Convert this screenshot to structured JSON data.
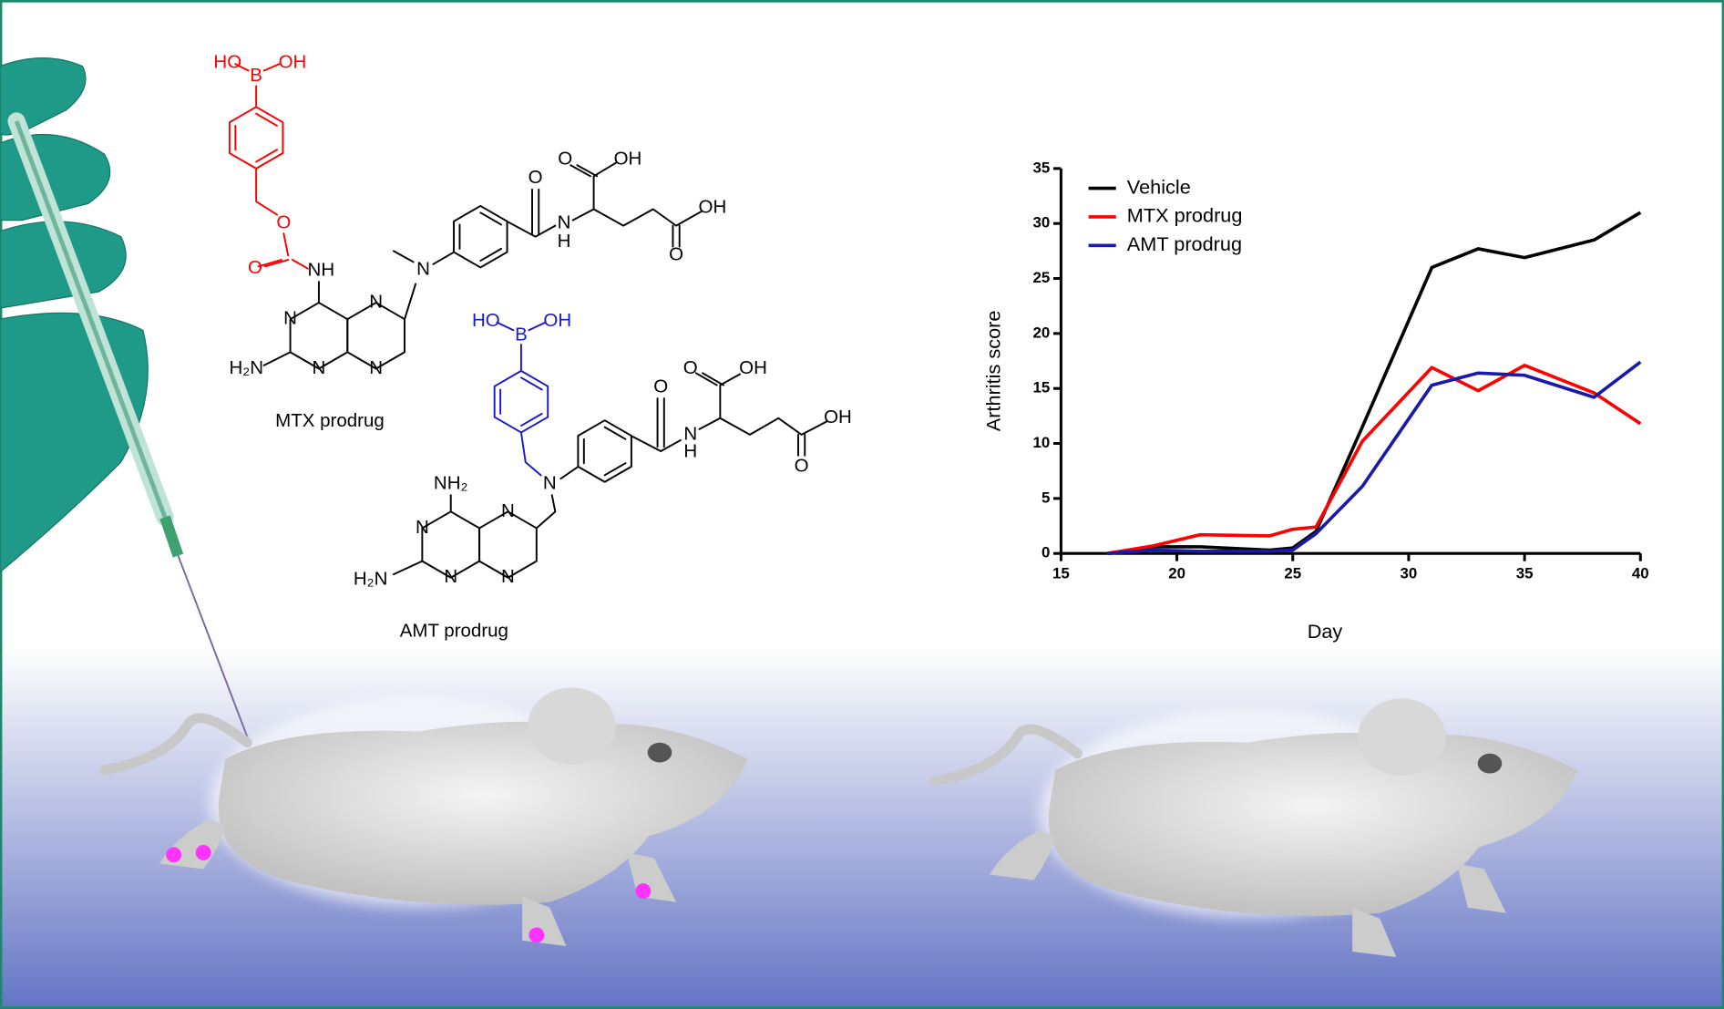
{
  "chart_data": {
    "type": "line",
    "x": [
      17,
      19,
      21,
      24,
      25,
      26,
      28,
      31,
      33,
      35,
      38,
      40
    ],
    "series": [
      {
        "name": "Vehicle",
        "color": "#000000",
        "values": [
          0,
          0.6,
          0.6,
          0.3,
          0.5,
          2,
          11.5,
          26,
          27.7,
          26.9,
          28.5,
          31
        ]
      },
      {
        "name": "MTX prodrug",
        "color": "#ff0000",
        "values": [
          0,
          0.7,
          1.7,
          1.6,
          2.2,
          2.4,
          10.2,
          16.9,
          14.8,
          17.1,
          14.6,
          11.8
        ]
      },
      {
        "name": "AMT prodrug",
        "color": "#1a1aaa",
        "values": [
          0,
          0.3,
          0.2,
          0.2,
          0.3,
          1.8,
          6.1,
          15.3,
          16.4,
          16.2,
          14.2,
          17.4
        ]
      }
    ],
    "xlim": [
      15,
      40
    ],
    "xticks": [
      15,
      20,
      25,
      30,
      35,
      40
    ],
    "ylim": [
      0,
      35
    ],
    "yticks": [
      0,
      5,
      10,
      15,
      20,
      25,
      30,
      35
    ],
    "xlabel": "Day",
    "ylabel": "Arthritis score",
    "legend": "upper left"
  },
  "molecules": [
    {
      "name": "MTX prodrug",
      "labels": [
        "HO",
        "B",
        "OH",
        "O",
        "O",
        "NH",
        "N",
        "N",
        "N",
        "N",
        "H₂N",
        "N",
        "O",
        "N",
        "H",
        "O",
        "OH",
        "OH",
        "O"
      ]
    },
    {
      "name": "AMT prodrug",
      "labels": [
        "HO",
        "B",
        "OH",
        "N",
        "O",
        "O",
        "OH",
        "N",
        "H",
        "OH",
        "O",
        "NH₂",
        "N",
        "N",
        "N",
        "N",
        "H₂N"
      ]
    }
  ]
}
